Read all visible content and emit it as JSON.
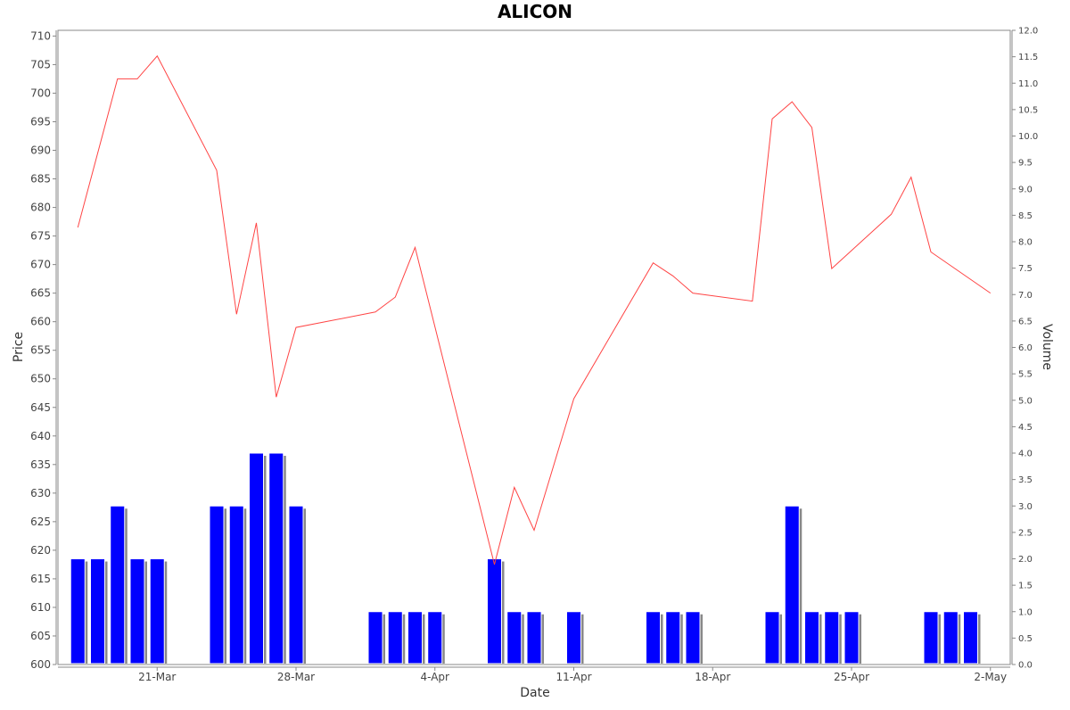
{
  "chart_data": {
    "type": "line+bar",
    "title": "ALICON",
    "xlabel": "Date",
    "ylabel": "Price",
    "y2label": "Volume",
    "ylim": [
      600,
      711
    ],
    "y2lim": [
      0,
      12
    ],
    "yticks": [
      600,
      605,
      610,
      615,
      620,
      625,
      630,
      635,
      640,
      645,
      650,
      655,
      660,
      665,
      670,
      675,
      680,
      685,
      690,
      695,
      700,
      705,
      710
    ],
    "y2ticks": [
      "0.0",
      "0.5",
      "1.0",
      "1.5",
      "2.0",
      "2.5",
      "3.0",
      "3.5",
      "4.0",
      "4.5",
      "5.0",
      "5.5",
      "6.0",
      "6.5",
      "7.0",
      "7.5",
      "8.0",
      "8.5",
      "9.0",
      "9.5",
      "10.0",
      "10.5",
      "11.0",
      "11.5",
      "12.0"
    ],
    "xticks": [
      {
        "label": "21-Mar",
        "date": "2022-03-21"
      },
      {
        "label": "28-Mar",
        "date": "2022-03-28"
      },
      {
        "label": "4-Apr",
        "date": "2022-04-04"
      },
      {
        "label": "11-Apr",
        "date": "2022-04-11"
      },
      {
        "label": "18-Apr",
        "date": "2022-04-18"
      },
      {
        "label": "25-Apr",
        "date": "2022-04-25"
      },
      {
        "label": "2-May",
        "date": "2022-05-02"
      }
    ],
    "xrange": [
      "2022-03-16",
      "2022-05-03"
    ],
    "legend": "none",
    "grid": false,
    "colors": {
      "price_line": "#ff4444",
      "volume_bar": "#0000ff",
      "volume_shadow": "#888888"
    },
    "series": [
      {
        "type": "line",
        "axis": "left",
        "x": [
          "2022-03-17",
          "2022-03-19",
          "2022-03-20",
          "2022-03-21",
          "2022-03-24",
          "2022-03-25",
          "2022-03-26",
          "2022-03-27",
          "2022-03-28",
          "2022-04-01",
          "2022-04-02",
          "2022-04-03",
          "2022-04-07",
          "2022-04-08",
          "2022-04-09",
          "2022-04-11",
          "2022-04-15",
          "2022-04-16",
          "2022-04-17",
          "2022-04-20",
          "2022-04-21",
          "2022-04-22",
          "2022-04-23",
          "2022-04-24",
          "2022-04-27",
          "2022-04-28",
          "2022-04-29",
          "2022-05-02"
        ],
        "values": [
          676.5,
          702.5,
          702.5,
          706.5,
          686.5,
          661.3,
          677.3,
          646.8,
          659,
          661.7,
          664.3,
          673,
          617.5,
          631,
          623.5,
          646.5,
          670.3,
          668,
          665,
          663.6,
          695.5,
          698.5,
          694,
          669.3,
          678.8,
          685.3,
          672.2,
          665
        ]
      },
      {
        "type": "bar",
        "axis": "right",
        "x": [
          "2022-03-17",
          "2022-03-18",
          "2022-03-19",
          "2022-03-20",
          "2022-03-21",
          "2022-03-24",
          "2022-03-25",
          "2022-03-26",
          "2022-03-27",
          "2022-03-28",
          "2022-04-01",
          "2022-04-02",
          "2022-04-03",
          "2022-04-04",
          "2022-04-07",
          "2022-04-08",
          "2022-04-09",
          "2022-04-11",
          "2022-04-15",
          "2022-04-16",
          "2022-04-17",
          "2022-04-21",
          "2022-04-22",
          "2022-04-23",
          "2022-04-24",
          "2022-04-25",
          "2022-04-29",
          "2022-04-30",
          "2022-05-01"
        ],
        "values": [
          2,
          2,
          3,
          2,
          2,
          3,
          3,
          4,
          4,
          3,
          1,
          1,
          1,
          1,
          2,
          1,
          1,
          1,
          1,
          1,
          1,
          1,
          3,
          1,
          1,
          1,
          1,
          1,
          1
        ]
      }
    ]
  }
}
